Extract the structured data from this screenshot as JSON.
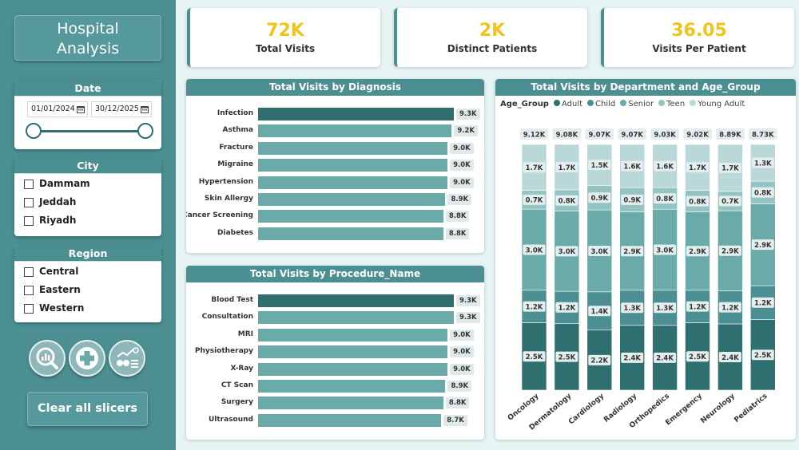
{
  "sidebar": {
    "title_line1": "Hospital",
    "title_line2": "Analysis",
    "date_slicer": {
      "label": "Date",
      "start": "01/01/2024",
      "end": "30/12/2025"
    },
    "city_slicer": {
      "label": "City",
      "options": [
        "Dammam",
        "Jeddah",
        "Riyadh"
      ]
    },
    "region_slicer": {
      "label": "Region",
      "options": [
        "Central",
        "Eastern",
        "Western"
      ]
    },
    "nav_icons": [
      "analysis-magnifier-icon",
      "medical-cross-icon",
      "finance-coins-icon"
    ],
    "clear_button": "Clear all slicers"
  },
  "kpis": [
    {
      "value": "72K",
      "label": "Total Visits"
    },
    {
      "value": "2K",
      "label": "Distinct Patients"
    },
    {
      "value": "36.05",
      "label": "Visits Per Patient"
    }
  ],
  "colors": {
    "accent": "#4b8f92",
    "kpi_value": "#f0c419",
    "bar_highlight": "#2f6f70",
    "bar_normal": "#6aaaa9",
    "age_adult": "#2f6f70",
    "age_child": "#4b8f92",
    "age_senior": "#6aaaa9",
    "age_teen": "#93c4c3",
    "age_young_adult": "#b9d8d7"
  },
  "chart_data": [
    {
      "type": "bar",
      "orientation": "horizontal",
      "title": "Total Visits by Diagnosis",
      "categories": [
        "Infection",
        "Asthma",
        "Fracture",
        "Migraine",
        "Hypertension",
        "Skin Allergy",
        "Cancer Screening",
        "Diabetes"
      ],
      "values": [
        9.3,
        9.2,
        9.0,
        9.0,
        9.0,
        8.9,
        8.8,
        8.8
      ],
      "labels": [
        "9.3K",
        "9.2K",
        "9.0K",
        "9.0K",
        "9.0K",
        "8.9K",
        "8.8K",
        "8.8K"
      ],
      "unit": "K",
      "grid": false
    },
    {
      "type": "bar",
      "orientation": "horizontal",
      "title": "Total Visits by Procedure_Name",
      "categories": [
        "Blood Test",
        "Consultation",
        "MRI",
        "Physiotherapy",
        "X-Ray",
        "CT Scan",
        "Surgery",
        "Ultrasound"
      ],
      "values": [
        9.3,
        9.3,
        9.0,
        9.0,
        9.0,
        8.9,
        8.8,
        8.7
      ],
      "labels": [
        "9.3K",
        "9.3K",
        "9.0K",
        "9.0K",
        "9.0K",
        "8.9K",
        "8.8K",
        "8.7K"
      ],
      "unit": "K",
      "grid": false
    },
    {
      "type": "bar",
      "stacked": "100%",
      "title": "Total Visits by Department and Age_Group",
      "legend_title": "Age_Group",
      "legend_placement": "top-left",
      "categories": [
        "Oncology",
        "Dermatology",
        "Cardiology",
        "Radiology",
        "Orthopedics",
        "Emergency",
        "Neurology",
        "Pediatrics"
      ],
      "totals": [
        "9.12K",
        "9.08K",
        "9.07K",
        "9.07K",
        "9.03K",
        "9.02K",
        "8.89K",
        "8.73K"
      ],
      "series": [
        {
          "name": "Adult",
          "values": [
            2.5,
            2.5,
            2.2,
            2.4,
            2.4,
            2.5,
            2.4,
            2.5
          ],
          "labels": [
            "2.5K",
            "2.5K",
            "2.2K",
            "2.4K",
            "2.4K",
            "2.5K",
            "2.4K",
            "2.5K"
          ]
        },
        {
          "name": "Child",
          "values": [
            1.2,
            1.2,
            1.4,
            1.3,
            1.3,
            1.2,
            1.2,
            1.2
          ],
          "labels": [
            "1.2K",
            "1.2K",
            "1.4K",
            "1.3K",
            "1.3K",
            "1.2K",
            "1.2K",
            "1.2K"
          ]
        },
        {
          "name": "Senior",
          "values": [
            3.0,
            3.0,
            3.0,
            2.9,
            3.0,
            2.9,
            2.9,
            2.9
          ],
          "labels": [
            "3.0K",
            "3.0K",
            "3.0K",
            "2.9K",
            "3.0K",
            "2.9K",
            "2.9K",
            "2.9K"
          ]
        },
        {
          "name": "Teen",
          "values": [
            0.7,
            0.8,
            0.9,
            0.9,
            0.8,
            0.8,
            0.7,
            0.8
          ],
          "labels": [
            "0.7K",
            "0.8K",
            "0.9K",
            "0.9K",
            "0.8K",
            "0.8K",
            "0.7K",
            "0.8K"
          ]
        },
        {
          "name": "Young Adult",
          "values": [
            1.7,
            1.7,
            1.5,
            1.6,
            1.6,
            1.7,
            1.7,
            1.3
          ],
          "labels": [
            "1.7K",
            "1.7K",
            "1.5K",
            "1.6K",
            "1.6K",
            "1.7K",
            "1.7K",
            "1.3K"
          ]
        }
      ]
    }
  ]
}
